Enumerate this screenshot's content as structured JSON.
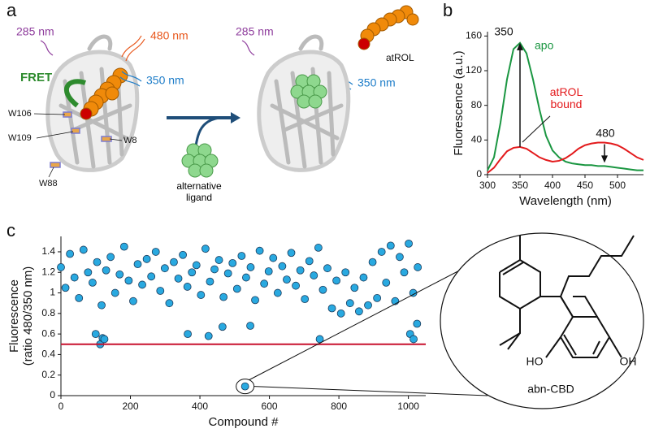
{
  "panel_labels": [
    "a",
    "b",
    "c"
  ],
  "panel_a": {
    "texts": [
      "285 nm",
      "480 nm",
      "350 nm",
      "FRET",
      "W106",
      "W109",
      "W8",
      "W88",
      "atROL",
      "285 nm",
      "350 nm",
      "alternative ligand"
    ]
  },
  "structure": {
    "name": "abn-CBD",
    "hydroxyl_left": "HO",
    "hydroxyl_right": "OH"
  },
  "chart_data": [
    {
      "type": "line",
      "x_label": "Wavelength (nm)",
      "y_label": "Fluorescence (a.u.)",
      "x": [
        300,
        310,
        320,
        330,
        340,
        350,
        360,
        370,
        380,
        390,
        400,
        410,
        420,
        430,
        440,
        450,
        460,
        470,
        480,
        490,
        500,
        510,
        520,
        530,
        540
      ],
      "series": [
        {
          "name": "apo",
          "color": "#1a9641",
          "values": [
            5,
            20,
            60,
            110,
            145,
            152,
            140,
            110,
            75,
            45,
            28,
            20,
            15,
            13,
            12,
            11,
            11,
            10,
            10,
            9,
            8,
            7,
            6,
            5,
            5
          ]
        },
        {
          "name": "atROL bound",
          "color": "#e31a1c",
          "values": [
            2,
            8,
            18,
            27,
            31,
            32,
            30,
            25,
            20,
            17,
            15,
            16,
            19,
            24,
            30,
            34,
            36,
            37,
            37,
            36,
            34,
            30,
            25,
            20,
            17
          ]
        }
      ],
      "annotations": [
        "350",
        "480"
      ],
      "xlim": [
        300,
        540
      ],
      "xticks": [
        300,
        350,
        400,
        450,
        500
      ],
      "ylim": [
        0,
        165
      ],
      "yticks": [
        0,
        40,
        80,
        120,
        160
      ]
    },
    {
      "type": "scatter",
      "x_label": "Compound #",
      "y_label": [
        "Fluorescence",
        "(ratio 480/350 nm)"
      ],
      "color": "#29a9e0",
      "threshold": 0.5,
      "threshold_color": "#c8102e",
      "x": [
        0,
        13,
        26,
        39,
        52,
        65,
        78,
        91,
        104,
        117,
        130,
        143,
        156,
        169,
        182,
        195,
        208,
        221,
        234,
        247,
        260,
        273,
        286,
        299,
        312,
        325,
        338,
        351,
        364,
        377,
        390,
        403,
        416,
        429,
        442,
        455,
        468,
        481,
        494,
        507,
        520,
        533,
        546,
        559,
        572,
        585,
        598,
        611,
        624,
        637,
        650,
        663,
        676,
        689,
        702,
        715,
        728,
        741,
        754,
        767,
        780,
        793,
        806,
        819,
        832,
        845,
        858,
        871,
        884,
        897,
        910,
        923,
        936,
        949,
        962,
        975,
        988,
        1001,
        1014,
        1027,
        100,
        113,
        120,
        125,
        365,
        425,
        465,
        530,
        545,
        745,
        1005,
        1015,
        1025
      ],
      "y": [
        1.25,
        1.05,
        1.38,
        1.15,
        0.95,
        1.42,
        1.2,
        1.1,
        1.3,
        0.88,
        1.22,
        1.35,
        1.0,
        1.18,
        1.45,
        1.12,
        0.92,
        1.28,
        1.08,
        1.33,
        1.16,
        1.4,
        1.02,
        1.24,
        0.9,
        1.3,
        1.14,
        1.37,
        1.06,
        1.2,
        1.27,
        0.98,
        1.43,
        1.11,
        1.23,
        1.32,
        0.96,
        1.19,
        1.29,
        1.04,
        1.36,
        1.15,
        1.25,
        0.93,
        1.41,
        1.09,
        1.21,
        1.34,
        1.0,
        1.26,
        1.13,
        1.39,
        1.07,
        1.22,
        0.94,
        1.31,
        1.17,
        1.44,
        1.03,
        1.24,
        0.85,
        1.12,
        0.8,
        1.2,
        0.9,
        1.05,
        0.82,
        1.15,
        0.88,
        1.3,
        0.95,
        1.4,
        1.1,
        1.46,
        0.92,
        1.35,
        1.2,
        1.48,
        1.0,
        1.25,
        0.6,
        0.5,
        0.56,
        0.55,
        0.6,
        0.58,
        0.67,
        0.09,
        0.68,
        0.55,
        0.6,
        0.55,
        0.7
      ],
      "xlim": [
        0,
        1050
      ],
      "xticks": [
        0,
        200,
        400,
        600,
        800,
        1000
      ],
      "ylim": [
        0,
        1.55
      ],
      "yticks": [
        0,
        0.2,
        0.4,
        0.6,
        0.8,
        1.0,
        1.2,
        1.4
      ]
    }
  ]
}
